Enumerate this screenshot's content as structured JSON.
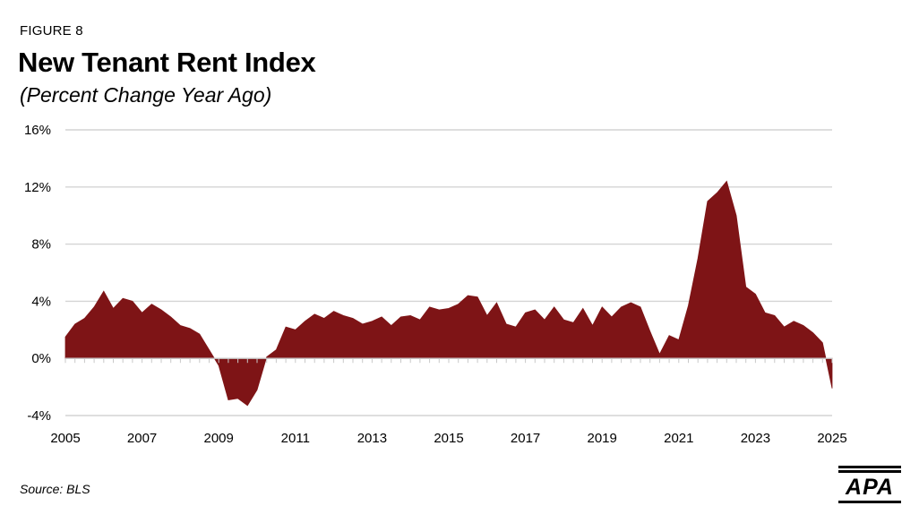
{
  "figure_label": "FIGURE 8",
  "source": "Source: BLS",
  "logo_text": "APA",
  "colors": {
    "fill": "#7e1416",
    "grid": "#d4d4d4",
    "axis": "#c9c9c9",
    "text": "#000000"
  },
  "chart_data": {
    "type": "area",
    "title": "New Tenant Rent Index",
    "subtitle": "(Percent Change Year Ago)",
    "xlabel": "",
    "ylabel": "",
    "xlim": [
      2005,
      2025
    ],
    "ylim": [
      -4,
      16
    ],
    "y_ticks": [
      {
        "value": -4,
        "label": "-4%"
      },
      {
        "value": 0,
        "label": "0%"
      },
      {
        "value": 4,
        "label": "4%"
      },
      {
        "value": 8,
        "label": "8%"
      },
      {
        "value": 12,
        "label": "12%"
      },
      {
        "value": 16,
        "label": "16%"
      }
    ],
    "x_ticks": [
      {
        "value": 2005,
        "label": "2005"
      },
      {
        "value": 2007,
        "label": "2007"
      },
      {
        "value": 2009,
        "label": "2009"
      },
      {
        "value": 2011,
        "label": "2011"
      },
      {
        "value": 2013,
        "label": "2013"
      },
      {
        "value": 2015,
        "label": "2015"
      },
      {
        "value": 2017,
        "label": "2017"
      },
      {
        "value": 2019,
        "label": "2019"
      },
      {
        "value": 2021,
        "label": "2021"
      },
      {
        "value": 2023,
        "label": "2023"
      },
      {
        "value": 2025,
        "label": "2025"
      }
    ],
    "grid": true,
    "legend": "none",
    "series": [
      {
        "values": [
          {
            "x": 2005.0,
            "y": 1.5
          },
          {
            "x": 2005.25,
            "y": 2.4
          },
          {
            "x": 2005.5,
            "y": 2.8
          },
          {
            "x": 2005.75,
            "y": 3.6
          },
          {
            "x": 2006.0,
            "y": 4.7
          },
          {
            "x": 2006.25,
            "y": 3.5
          },
          {
            "x": 2006.5,
            "y": 4.2
          },
          {
            "x": 2006.75,
            "y": 4.0
          },
          {
            "x": 2007.0,
            "y": 3.2
          },
          {
            "x": 2007.25,
            "y": 3.8
          },
          {
            "x": 2007.5,
            "y": 3.4
          },
          {
            "x": 2007.75,
            "y": 2.9
          },
          {
            "x": 2008.0,
            "y": 2.3
          },
          {
            "x": 2008.25,
            "y": 2.1
          },
          {
            "x": 2008.5,
            "y": 1.7
          },
          {
            "x": 2008.75,
            "y": 0.6
          },
          {
            "x": 2009.0,
            "y": -0.5
          },
          {
            "x": 2009.25,
            "y": -2.9
          },
          {
            "x": 2009.5,
            "y": -2.8
          },
          {
            "x": 2009.75,
            "y": -3.3
          },
          {
            "x": 2010.0,
            "y": -2.2
          },
          {
            "x": 2010.25,
            "y": 0.1
          },
          {
            "x": 2010.5,
            "y": 0.6
          },
          {
            "x": 2010.75,
            "y": 2.2
          },
          {
            "x": 2011.0,
            "y": 2.0
          },
          {
            "x": 2011.25,
            "y": 2.6
          },
          {
            "x": 2011.5,
            "y": 3.1
          },
          {
            "x": 2011.75,
            "y": 2.8
          },
          {
            "x": 2012.0,
            "y": 3.3
          },
          {
            "x": 2012.25,
            "y": 3.0
          },
          {
            "x": 2012.5,
            "y": 2.8
          },
          {
            "x": 2012.75,
            "y": 2.4
          },
          {
            "x": 2013.0,
            "y": 2.6
          },
          {
            "x": 2013.25,
            "y": 2.9
          },
          {
            "x": 2013.5,
            "y": 2.3
          },
          {
            "x": 2013.75,
            "y": 2.9
          },
          {
            "x": 2014.0,
            "y": 3.0
          },
          {
            "x": 2014.25,
            "y": 2.7
          },
          {
            "x": 2014.5,
            "y": 3.6
          },
          {
            "x": 2014.75,
            "y": 3.4
          },
          {
            "x": 2015.0,
            "y": 3.5
          },
          {
            "x": 2015.25,
            "y": 3.8
          },
          {
            "x": 2015.5,
            "y": 4.4
          },
          {
            "x": 2015.75,
            "y": 4.3
          },
          {
            "x": 2016.0,
            "y": 3.0
          },
          {
            "x": 2016.25,
            "y": 3.9
          },
          {
            "x": 2016.5,
            "y": 2.4
          },
          {
            "x": 2016.75,
            "y": 2.2
          },
          {
            "x": 2017.0,
            "y": 3.2
          },
          {
            "x": 2017.25,
            "y": 3.4
          },
          {
            "x": 2017.5,
            "y": 2.7
          },
          {
            "x": 2017.75,
            "y": 3.6
          },
          {
            "x": 2018.0,
            "y": 2.7
          },
          {
            "x": 2018.25,
            "y": 2.5
          },
          {
            "x": 2018.5,
            "y": 3.5
          },
          {
            "x": 2018.75,
            "y": 2.3
          },
          {
            "x": 2019.0,
            "y": 3.6
          },
          {
            "x": 2019.25,
            "y": 2.9
          },
          {
            "x": 2019.5,
            "y": 3.6
          },
          {
            "x": 2019.75,
            "y": 3.9
          },
          {
            "x": 2020.0,
            "y": 3.6
          },
          {
            "x": 2020.25,
            "y": 1.9
          },
          {
            "x": 2020.5,
            "y": 0.3
          },
          {
            "x": 2020.75,
            "y": 1.6
          },
          {
            "x": 2021.0,
            "y": 1.3
          },
          {
            "x": 2021.25,
            "y": 3.7
          },
          {
            "x": 2021.5,
            "y": 7.0
          },
          {
            "x": 2021.75,
            "y": 11.0
          },
          {
            "x": 2022.0,
            "y": 11.6
          },
          {
            "x": 2022.25,
            "y": 12.4
          },
          {
            "x": 2022.5,
            "y": 10.0
          },
          {
            "x": 2022.75,
            "y": 5.0
          },
          {
            "x": 2023.0,
            "y": 4.5
          },
          {
            "x": 2023.25,
            "y": 3.2
          },
          {
            "x": 2023.5,
            "y": 3.0
          },
          {
            "x": 2023.75,
            "y": 2.2
          },
          {
            "x": 2024.0,
            "y": 2.6
          },
          {
            "x": 2024.25,
            "y": 2.3
          },
          {
            "x": 2024.5,
            "y": 1.8
          },
          {
            "x": 2024.75,
            "y": 1.1
          },
          {
            "x": 2025.0,
            "y": -2.1
          }
        ]
      }
    ]
  }
}
